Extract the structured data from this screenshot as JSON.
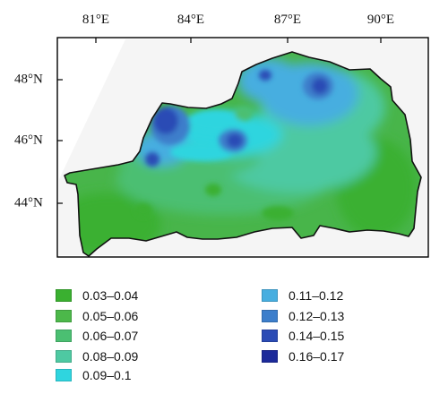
{
  "map": {
    "x_ticks": [
      "81°E",
      "84°E",
      "87°E",
      "90°E"
    ],
    "y_ticks": [
      "48°N",
      "46°N",
      "44°N"
    ]
  },
  "legend": {
    "items": [
      {
        "label": "0.03–0.04",
        "color": "#3ab030"
      },
      {
        "label": "0.05–0.06",
        "color": "#4cb84a"
      },
      {
        "label": "0.06–0.07",
        "color": "#4bbf72"
      },
      {
        "label": "0.08–0.09",
        "color": "#4ec9a2"
      },
      {
        "label": "0.09–0.1",
        "color": "#2fd5df"
      },
      {
        "label": "0.11–0.12",
        "color": "#47aee0"
      },
      {
        "label": "0.12–0.13",
        "color": "#3c7ecb"
      },
      {
        "label": "0.14–0.15",
        "color": "#2b4bb5"
      },
      {
        "label": "0.16–0.17",
        "color": "#1c2a9a"
      }
    ]
  }
}
